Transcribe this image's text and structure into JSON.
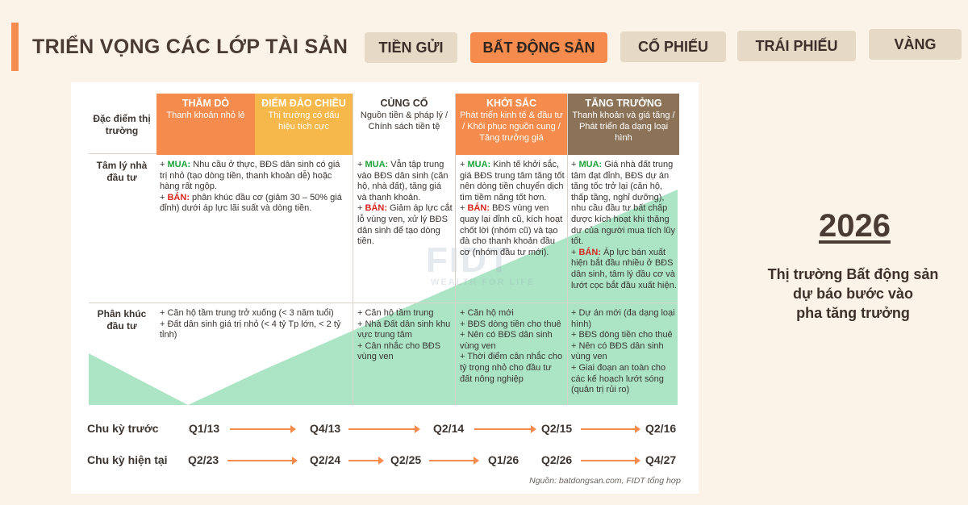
{
  "title": "TRIỂN VỌNG CÁC LỚP TÀI SẢN",
  "tabs": [
    {
      "label": "TIỀN GỬI",
      "active": false
    },
    {
      "label": "BẤT ĐỘNG SẢN",
      "active": true
    },
    {
      "label": "CỔ PHIẾU",
      "active": false
    },
    {
      "label": "TRÁI PHIẾU",
      "active": false
    },
    {
      "label": "VÀNG",
      "active": false
    }
  ],
  "table": {
    "corner_label": "Đặc điểm thị trường",
    "phases": [
      {
        "name": "THĂM DÒ",
        "desc": "Thanh khoản nhỏ lẻ",
        "color": "#f58b4c"
      },
      {
        "name": "ĐIỂM ĐẢO CHIỀU",
        "desc": "Thị trường có dấu hiệu tích cực",
        "color": "#f7b84b"
      },
      {
        "name": "CỦNG CỐ",
        "desc": "Nguồn tiền & pháp lý / Chính sách tiền tệ",
        "color": "#ffffff"
      },
      {
        "name": "KHỞI SẮC",
        "desc": "Phát triển kinh tế & đầu tư / Khôi phục nguồn cung / Tăng trưởng giá",
        "color": "#f58b4c"
      },
      {
        "name": "TĂNG TRƯỞNG",
        "desc": "Thanh khoản và giá tăng / Phát triển đa dạng loại hình",
        "color": "#8c7358"
      }
    ],
    "rows": [
      {
        "label": "Tâm lý nhà đầu tư",
        "cells": [
          {
            "lines": [
              {
                "buy": "MUA:",
                "text": " Nhu cầu ở thực, BĐS dân sinh có giá trị nhỏ (tạo dòng tiền, thanh khoản dễ) hoặc hàng rất ngộp."
              },
              {
                "sell": "BÁN:",
                "text": " phân khúc đầu cơ (giảm 30 – 50% giá đỉnh) dưới áp lực lãi suất và dòng tiền."
              }
            ]
          },
          {
            "lines": [
              {
                "buy": "MUA:",
                "text": " Vẫn tập trung vào BĐS dân sinh (căn hộ, nhà đất), tăng giá và thanh khoản."
              },
              {
                "sell": "BÁN:",
                "text": " Giảm áp lực cắt lỗ vùng ven, xử lý BĐS dân sinh để tạo dòng tiền."
              }
            ]
          },
          {
            "lines": [
              {
                "buy": "MUA:",
                "text": " Kinh tế khởi sắc, giá BĐS trung tâm tăng tốt nên dòng tiền chuyển dịch tìm tiềm năng tốt hơn."
              },
              {
                "sell": "BÁN:",
                "text": " BĐS vùng ven quay lại đỉnh cũ, kích hoạt chốt lời (nhóm cũ) và tạo đà cho thanh khoản đầu cơ (nhóm đầu tư mới)."
              }
            ]
          },
          {
            "lines": [
              {
                "buy": "MUA:",
                "text": " Giá nhà đất trung tâm đạt đỉnh, BĐS dự án tăng tốc trở lại (căn hộ, thấp tầng, nghỉ dưỡng), nhu cầu đầu tư bất chấp được kích hoạt khi thặng dư của người mua tích lũy tốt."
              },
              {
                "sell": "BÁN:",
                "text": " Áp lực bán xuất hiện bắt đầu nhiều ở BĐS dân sinh, tâm lý đầu cơ và lướt cọc bắt đầu xuất hiện."
              }
            ]
          }
        ]
      },
      {
        "label": "Phân khúc đầu tư",
        "cells": [
          {
            "items": [
              "+ Căn hộ tầm trung trở xuống (< 3 năm tuổi)",
              "+ Đất dân sinh giá trị nhỏ (< 4 tỷ Tp lớn, < 2 tỷ tỉnh)"
            ]
          },
          {
            "items": [
              "+ Căn hộ tầm trung",
              "+ Nhà Đất dân sinh khu vực trung tâm",
              "+ Cân nhắc cho BĐS vùng ven"
            ]
          },
          {
            "items": [
              "+ Căn hộ mới",
              "+ BĐS dòng tiền cho thuê",
              "+ Nên có BĐS dân sinh vùng ven",
              "+ Thời điểm cân nhắc cho tỷ trọng nhỏ cho đầu tư đất nông nghiệp"
            ]
          },
          {
            "items": [
              "+ Dự án mới (đa dạng loại hình)",
              "+ BĐS dòng tiền cho thuê",
              "+ Nên có BĐS dân sinh vùng ven",
              "+ Giai đoạn an toàn cho các kế hoạch lướt sóng (quản trị rủi ro)"
            ]
          }
        ]
      }
    ]
  },
  "watermark": {
    "big": "FIDT",
    "small": "WEALTH FOR LIFE"
  },
  "cycles": [
    {
      "label": "Chu kỳ trước",
      "quarters": [
        "Q1/13",
        "Q4/13",
        "Q2/14",
        "Q2/15",
        "Q2/16"
      ]
    },
    {
      "label": "Chu kỳ hiện tại",
      "quarters": [
        "Q2/23",
        "Q2/24",
        "Q2/25",
        "Q1/26",
        "Q2/26",
        "Q4/27"
      ]
    }
  ],
  "source": "Nguồn: batdongsan.com, FIDT tổng hợp",
  "side": {
    "year": "2026",
    "forecast": [
      "Thị trường Bất động sản",
      "dự báo bước vào",
      "pha tăng trưởng"
    ]
  },
  "colors": {
    "accent": "#f58b4c",
    "tab_bg": "#e6d9c6",
    "green_fill": "#ace5c5",
    "brown": "#8c7358",
    "yellow": "#f7b84b"
  }
}
